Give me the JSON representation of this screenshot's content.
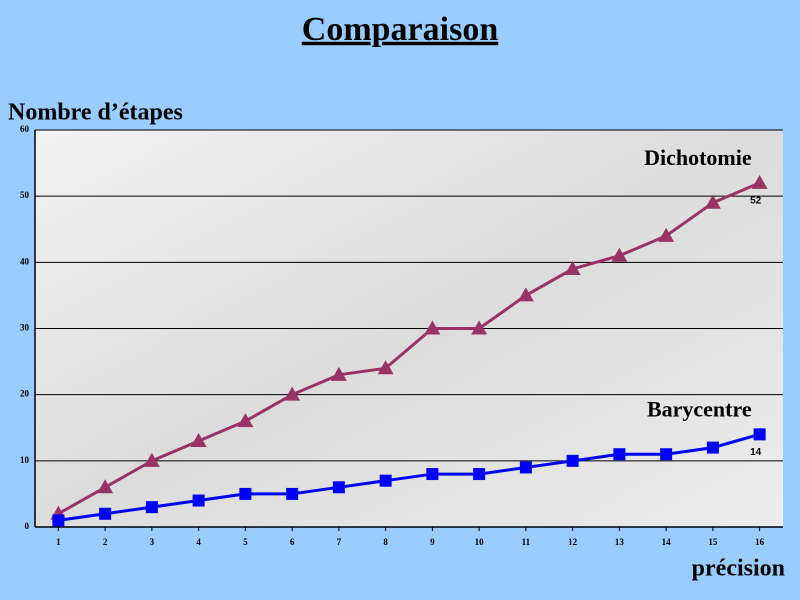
{
  "chart_data": {
    "type": "line",
    "title": "Comparaison",
    "y_label": "Nombre d’étapes",
    "x_label": "précision",
    "x": [
      1,
      2,
      3,
      4,
      5,
      6,
      7,
      8,
      9,
      10,
      11,
      12,
      13,
      14,
      15,
      16
    ],
    "xlim": [
      0.5,
      16.5
    ],
    "ylim": [
      0,
      60
    ],
    "yticks": [
      0,
      10,
      20,
      30,
      40,
      50,
      60
    ],
    "grid": true,
    "show_last_value": true,
    "series": [
      {
        "name": "Dichotomie",
        "color": "#993366",
        "marker": "triangle",
        "values": [
          2,
          6,
          10,
          13,
          16,
          20,
          23,
          24,
          30,
          30,
          35,
          39,
          41,
          44,
          49,
          52
        ]
      },
      {
        "name": "Barycentre",
        "color": "#0000ff",
        "marker": "square",
        "values": [
          1,
          2,
          3,
          4,
          5,
          5,
          6,
          7,
          8,
          8,
          9,
          10,
          11,
          11,
          12,
          14
        ]
      }
    ]
  }
}
